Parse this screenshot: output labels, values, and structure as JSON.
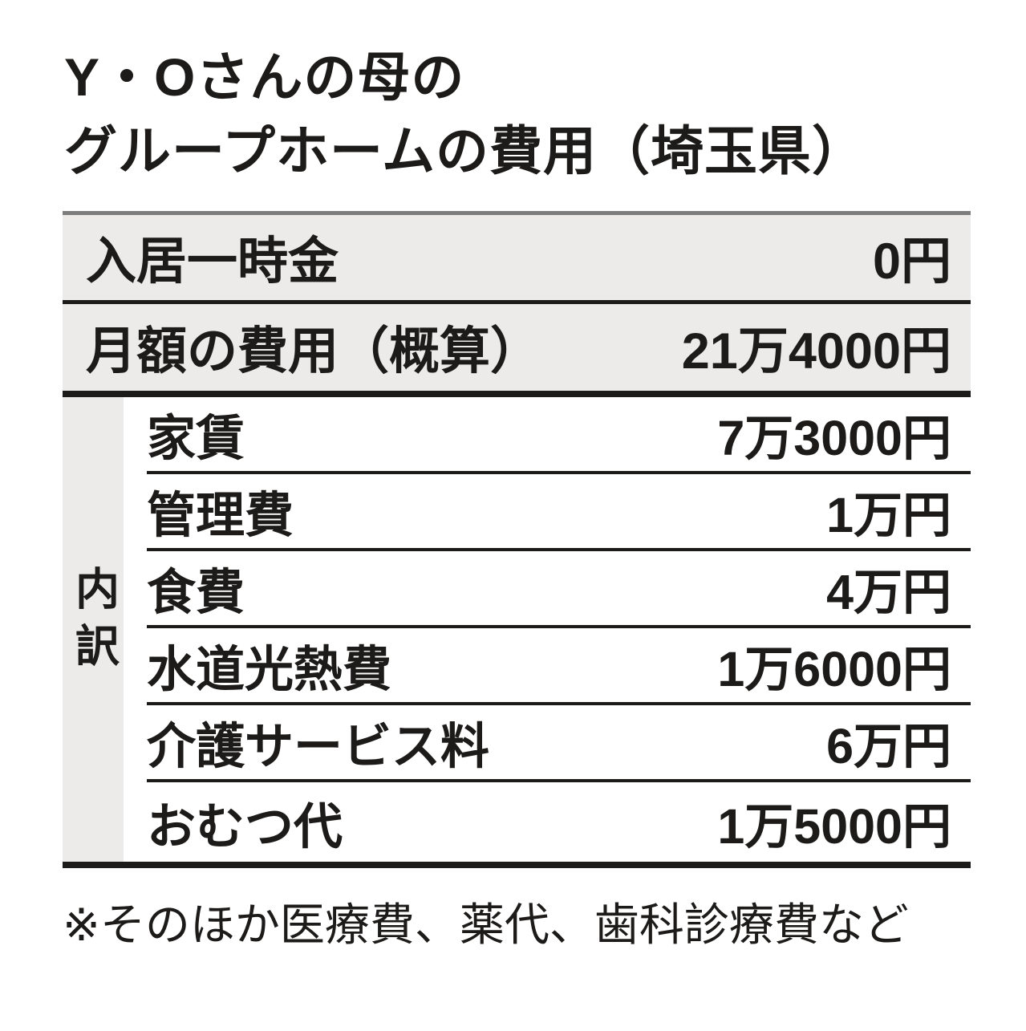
{
  "title": {
    "line1": "Y・Oさんの母の",
    "line2": "グループホームの費用（埼玉県）"
  },
  "summary_rows": [
    {
      "label": "入居一時金",
      "value": "0円"
    },
    {
      "label": "月額の費用（概算）",
      "value": "21万4000円"
    }
  ],
  "breakdown": {
    "header": "内訳",
    "rows": [
      {
        "label": "家賃",
        "value": "7万3000円"
      },
      {
        "label": "管理費",
        "value": "1万円"
      },
      {
        "label": "食費",
        "value": "4万円"
      },
      {
        "label": "水道光熱費",
        "value": "1万6000円"
      },
      {
        "label": "介護サービス料",
        "value": "6万円"
      },
      {
        "label": "おむつ代",
        "value": "1万5000円"
      }
    ]
  },
  "footnote": "※そのほか医療費、薬代、歯科診療費など",
  "colors": {
    "text": "#1d1b1a",
    "row_background": "#ecebe9",
    "top_border": "#7d7d7d",
    "rule": "#1d1b1a"
  }
}
